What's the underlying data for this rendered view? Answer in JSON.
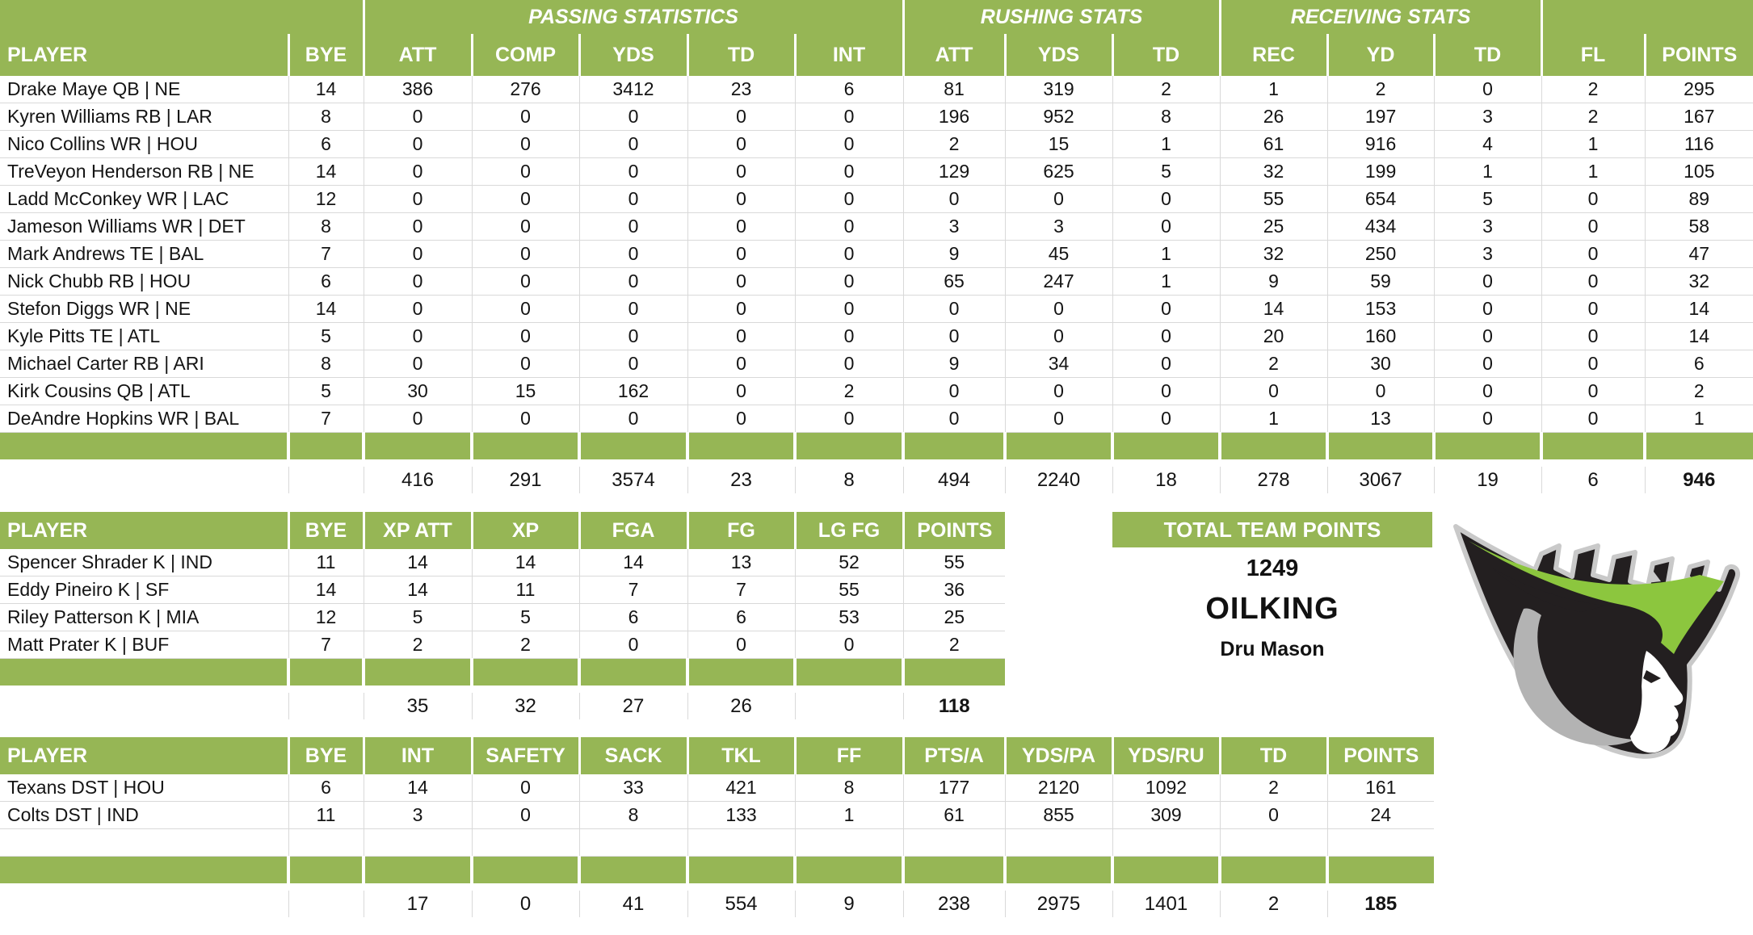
{
  "colors": {
    "header_green": "#96B655",
    "row_line": "#D9D9D9",
    "logo_black": "#231F20",
    "logo_green": "#8CC63E",
    "logo_silver": "#C9C9C9",
    "logo_gray": "#B3B3B3",
    "text_dark": "#141414"
  },
  "team_summary": {
    "title": "TOTAL TEAM POINTS",
    "total_points": "1249",
    "team_name": "OILKING",
    "owner": "Dru Mason",
    "logo_icon": "oil-king-crowned-head-logo"
  },
  "tables": [
    {
      "id": "offense",
      "group_headers": [
        {
          "label": "",
          "span": 2
        },
        {
          "label": "PASSING STATISTICS",
          "span": 5
        },
        {
          "label": "RUSHING STATS",
          "span": 3
        },
        {
          "label": "RECEIVING STATS",
          "span": 3
        },
        {
          "label": "",
          "span": 2
        }
      ],
      "columns": [
        "PLAYER",
        "BYE",
        "ATT",
        "COMP",
        "YDS",
        "TD",
        "INT",
        "ATT",
        "YDS",
        "TD",
        "REC",
        "YD",
        "TD",
        "FL",
        "POINTS"
      ],
      "rows": [
        [
          "Drake Maye QB | NE",
          "14",
          "386",
          "276",
          "3412",
          "23",
          "6",
          "81",
          "319",
          "2",
          "1",
          "2",
          "0",
          "2",
          "295"
        ],
        [
          "Kyren Williams RB | LAR",
          "8",
          "0",
          "0",
          "0",
          "0",
          "0",
          "196",
          "952",
          "8",
          "26",
          "197",
          "3",
          "2",
          "167"
        ],
        [
          "Nico Collins WR | HOU",
          "6",
          "0",
          "0",
          "0",
          "0",
          "0",
          "2",
          "15",
          "1",
          "61",
          "916",
          "4",
          "1",
          "116"
        ],
        [
          "TreVeyon Henderson RB | NE",
          "14",
          "0",
          "0",
          "0",
          "0",
          "0",
          "129",
          "625",
          "5",
          "32",
          "199",
          "1",
          "1",
          "105"
        ],
        [
          "Ladd McConkey WR | LAC",
          "12",
          "0",
          "0",
          "0",
          "0",
          "0",
          "0",
          "0",
          "0",
          "55",
          "654",
          "5",
          "0",
          "89"
        ],
        [
          "Jameson Williams WR | DET",
          "8",
          "0",
          "0",
          "0",
          "0",
          "0",
          "3",
          "3",
          "0",
          "25",
          "434",
          "3",
          "0",
          "58"
        ],
        [
          "Mark Andrews TE | BAL",
          "7",
          "0",
          "0",
          "0",
          "0",
          "0",
          "9",
          "45",
          "1",
          "32",
          "250",
          "3",
          "0",
          "47"
        ],
        [
          "Nick Chubb RB | HOU",
          "6",
          "0",
          "0",
          "0",
          "0",
          "0",
          "65",
          "247",
          "1",
          "9",
          "59",
          "0",
          "0",
          "32"
        ],
        [
          "Stefon Diggs WR | NE",
          "14",
          "0",
          "0",
          "0",
          "0",
          "0",
          "0",
          "0",
          "0",
          "14",
          "153",
          "0",
          "0",
          "14"
        ],
        [
          "Kyle Pitts TE | ATL",
          "5",
          "0",
          "0",
          "0",
          "0",
          "0",
          "0",
          "0",
          "0",
          "20",
          "160",
          "0",
          "0",
          "14"
        ],
        [
          "Michael Carter RB | ARI",
          "8",
          "0",
          "0",
          "0",
          "0",
          "0",
          "9",
          "34",
          "0",
          "2",
          "30",
          "0",
          "0",
          "6"
        ],
        [
          "Kirk Cousins QB | ATL",
          "5",
          "30",
          "15",
          "162",
          "0",
          "2",
          "0",
          "0",
          "0",
          "0",
          "0",
          "0",
          "0",
          "2"
        ],
        [
          "DeAndre Hopkins WR | BAL",
          "7",
          "0",
          "0",
          "0",
          "0",
          "0",
          "0",
          "0",
          "0",
          "1",
          "13",
          "0",
          "0",
          "1"
        ]
      ],
      "totals": [
        "",
        "",
        "416",
        "291",
        "3574",
        "23",
        "8",
        "494",
        "2240",
        "18",
        "278",
        "3067",
        "19",
        "6",
        "946"
      ]
    },
    {
      "id": "kickers",
      "columns": [
        "PLAYER",
        "BYE",
        "XP ATT",
        "XP",
        "FGA",
        "FG",
        "LG FG",
        "POINTS"
      ],
      "rows": [
        [
          "Spencer Shrader K | IND",
          "11",
          "14",
          "14",
          "14",
          "13",
          "52",
          "55"
        ],
        [
          "Eddy Pineiro K | SF",
          "14",
          "14",
          "11",
          "7",
          "7",
          "55",
          "36"
        ],
        [
          "Riley Patterson K | MIA",
          "12",
          "5",
          "5",
          "6",
          "6",
          "53",
          "25"
        ],
        [
          "Matt Prater K | BUF",
          "7",
          "2",
          "2",
          "0",
          "0",
          "0",
          "2"
        ]
      ],
      "totals": [
        "",
        "",
        "35",
        "32",
        "27",
        "26",
        "",
        "118"
      ]
    },
    {
      "id": "defense",
      "columns": [
        "PLAYER",
        "BYE",
        "INT",
        "SAFETY",
        "SACK",
        "TKL",
        "FF",
        "PTS/A",
        "YDS/PA",
        "YDS/RU",
        "TD",
        "POINTS"
      ],
      "rows": [
        [
          "Texans DST | HOU",
          "6",
          "14",
          "0",
          "33",
          "421",
          "8",
          "177",
          "2120",
          "1092",
          "2",
          "161"
        ],
        [
          "Colts DST | IND",
          "11",
          "3",
          "0",
          "8",
          "133",
          "1",
          "61",
          "855",
          "309",
          "0",
          "24"
        ],
        [
          "",
          "",
          "",
          "",
          "",
          "",
          "",
          "",
          "",
          "",
          "",
          ""
        ]
      ],
      "totals": [
        "",
        "",
        "17",
        "0",
        "41",
        "554",
        "9",
        "238",
        "2975",
        "1401",
        "2",
        "185"
      ]
    }
  ]
}
